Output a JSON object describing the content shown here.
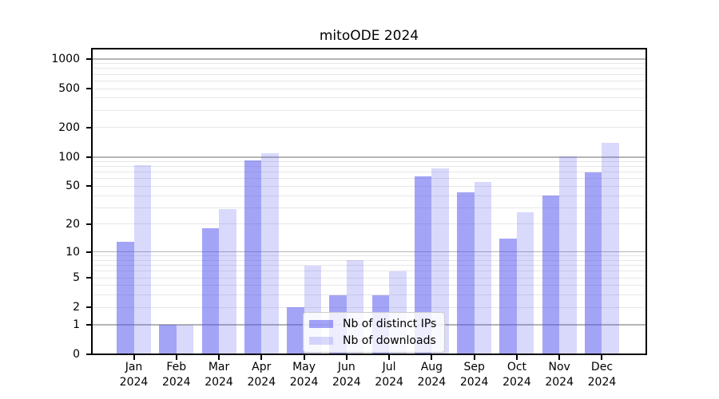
{
  "chart_data": {
    "type": "bar",
    "title": "mitoODE 2024",
    "categories": [
      "Jan",
      "Feb",
      "Mar",
      "Apr",
      "May",
      "Jun",
      "Jul",
      "Aug",
      "Sep",
      "Oct",
      "Nov",
      "Dec"
    ],
    "x_year_label": "2024",
    "series": [
      {
        "name": "Nb of distinct IPs",
        "color": "rgba(80,80,240,0.52)",
        "values": [
          13,
          1,
          18,
          93,
          2,
          3,
          3,
          63,
          43,
          14,
          40,
          70
        ]
      },
      {
        "name": "Nb of downloads",
        "color": "rgba(80,80,240,0.22)",
        "values": [
          82,
          1,
          29,
          110,
          7,
          8,
          6,
          77,
          55,
          27,
          101,
          140
        ]
      }
    ],
    "yscale": "log10(1+y)",
    "yticks": [
      0,
      1,
      2,
      5,
      10,
      20,
      50,
      100,
      200,
      500,
      1000
    ],
    "ylim": [
      0,
      1300
    ],
    "grid": true,
    "gridline_major_values": [
      1,
      10,
      100,
      1000
    ],
    "legend_position": "lower-center",
    "colors": {
      "bar_dark": "#a6a6f6",
      "bar_light": "#d9d9fa",
      "grid_major": "#b4b4b4",
      "grid_minor": "#e7e7e7",
      "spine": "#000000"
    }
  }
}
